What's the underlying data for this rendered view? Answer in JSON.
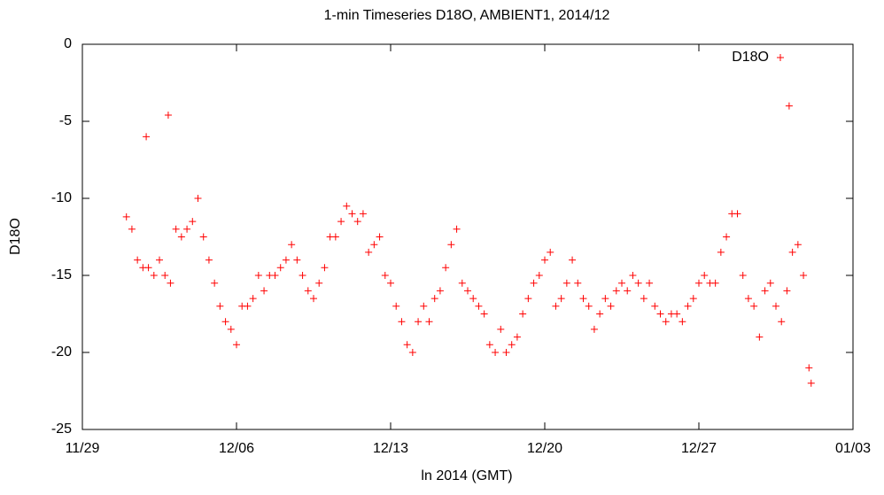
{
  "chart_data": {
    "type": "scatter",
    "title": "1-min Timeseries D18O, AMBIENT1, 2014/12",
    "x_label": "ln 2014 (GMT)",
    "y_label": "D18O",
    "legend_position": "top-right",
    "xlim": [
      0,
      35
    ],
    "xticks": [
      {
        "value": 0,
        "label": "11/29"
      },
      {
        "value": 7,
        "label": "12/06"
      },
      {
        "value": 14,
        "label": "12/13"
      },
      {
        "value": 21,
        "label": "12/20"
      },
      {
        "value": 28,
        "label": "12/27"
      },
      {
        "value": 35,
        "label": "01/03"
      }
    ],
    "ylim": [
      -25,
      0
    ],
    "yticks": [
      -25,
      -20,
      -15,
      -10,
      -5,
      0
    ],
    "series": [
      {
        "name": "D18O",
        "color": "#ff0000",
        "x": [
          2.0,
          2.25,
          2.5,
          2.75,
          2.9,
          3.0,
          3.25,
          3.5,
          3.75,
          3.9,
          4.0,
          4.25,
          4.5,
          4.75,
          5.0,
          5.25,
          5.5,
          5.75,
          6.0,
          6.25,
          6.5,
          6.75,
          7.0,
          7.25,
          7.5,
          7.75,
          8.0,
          8.25,
          8.5,
          8.75,
          9.0,
          9.25,
          9.5,
          9.75,
          10.0,
          10.25,
          10.5,
          10.75,
          11.0,
          11.25,
          11.5,
          11.75,
          12.0,
          12.25,
          12.5,
          12.75,
          13.0,
          13.25,
          13.5,
          13.75,
          14.0,
          14.25,
          14.5,
          14.75,
          15.0,
          15.25,
          15.5,
          15.75,
          16.0,
          16.25,
          16.5,
          16.75,
          17.0,
          17.25,
          17.5,
          17.75,
          18.0,
          18.25,
          18.5,
          18.75,
          19.0,
          19.25,
          19.5,
          19.75,
          20.0,
          20.25,
          20.5,
          20.75,
          21.0,
          21.25,
          21.5,
          21.75,
          22.0,
          22.25,
          22.5,
          22.75,
          23.0,
          23.25,
          23.5,
          23.75,
          24.0,
          24.25,
          24.5,
          24.75,
          25.0,
          25.25,
          25.5,
          25.75,
          26.0,
          26.25,
          26.5,
          26.75,
          27.0,
          27.25,
          27.5,
          27.75,
          28.0,
          28.25,
          28.5,
          28.75,
          29.0,
          29.25,
          29.5,
          29.75,
          30.0,
          30.25,
          30.5,
          30.75,
          31.0,
          31.25,
          31.5,
          31.75,
          32.0,
          32.1,
          32.25,
          32.5,
          32.75,
          33.0,
          33.1
        ],
        "values": [
          -11.2,
          -12,
          -14,
          -14.5,
          -6,
          -14.5,
          -15,
          -14,
          -15,
          -4.6,
          -15.5,
          -12,
          -12.5,
          -12,
          -11.5,
          -10,
          -12.5,
          -14,
          -15.5,
          -17,
          -18,
          -18.5,
          -19.5,
          -17,
          -17,
          -16.5,
          -15,
          -16,
          -15,
          -15,
          -14.5,
          -14,
          -13,
          -14,
          -15,
          -16,
          -16.5,
          -15.5,
          -14.5,
          -12.5,
          -12.5,
          -11.5,
          -10.5,
          -11,
          -11.5,
          -11,
          -13.5,
          -13,
          -12.5,
          -15,
          -15.5,
          -17,
          -18,
          -19.5,
          -20,
          -18,
          -17,
          -18,
          -16.5,
          -16,
          -14.5,
          -13,
          -12,
          -15.5,
          -16,
          -16.5,
          -17,
          -17.5,
          -19.5,
          -20,
          -18.5,
          -20,
          -19.5,
          -19,
          -17.5,
          -16.5,
          -15.5,
          -15,
          -14,
          -13.5,
          -17,
          -16.5,
          -15.5,
          -14,
          -15.5,
          -16.5,
          -17,
          -18.5,
          -17.5,
          -16.5,
          -17,
          -16,
          -15.5,
          -16,
          -15,
          -15.5,
          -16.5,
          -15.5,
          -17,
          -17.5,
          -18,
          -17.5,
          -17.5,
          -18,
          -17,
          -16.5,
          -15.5,
          -15,
          -15.5,
          -15.5,
          -13.5,
          -12.5,
          -11,
          -11,
          -15,
          -16.5,
          -17,
          -19,
          -16,
          -15.5,
          -17,
          -18,
          -16,
          -4,
          -13.5,
          -13,
          -15,
          -21,
          -22
        ]
      }
    ]
  }
}
